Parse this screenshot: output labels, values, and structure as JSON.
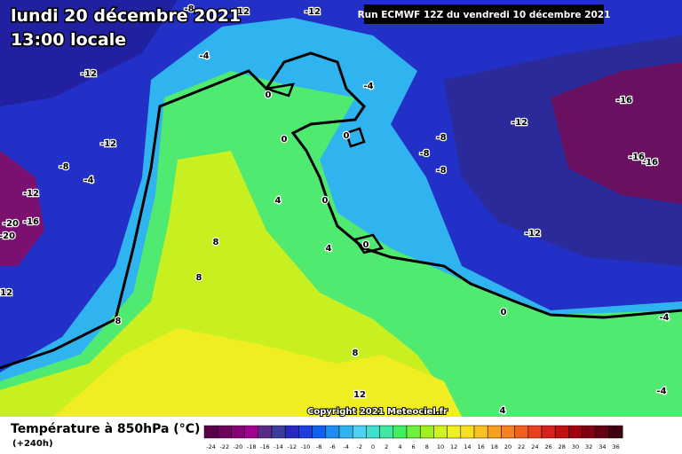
{
  "header": {
    "date": "lundi 20 décembre 2021",
    "time": "13:00 locale",
    "run": "Run ECMWF 12Z du vendredi 10 décembre 2021",
    "copyright": "Copyright 2021 Meteociel.fr"
  },
  "legend": {
    "title": "Température à 850hPa (°C)",
    "lead": "(+240h)",
    "ticks": [
      -24,
      -22,
      -20,
      -18,
      -16,
      -14,
      -12,
      -10,
      -8,
      -6,
      -4,
      -2,
      0,
      2,
      4,
      6,
      8,
      10,
      12,
      14,
      16,
      18,
      20,
      22,
      24,
      26,
      28,
      30,
      32,
      34,
      36
    ],
    "colors": [
      "#58004a",
      "#6e005e",
      "#880078",
      "#a0008e",
      "#5a2a8a",
      "#3c3c9a",
      "#2828c0",
      "#1e3ee0",
      "#1060f0",
      "#1e8cf0",
      "#30b4f0",
      "#50d0f0",
      "#40e0d0",
      "#40e8a0",
      "#40f060",
      "#70f040",
      "#a0f020",
      "#d0f020",
      "#f0f020",
      "#f8e020",
      "#f8c020",
      "#f8a020",
      "#f88020",
      "#f06020",
      "#e84020",
      "#d82020",
      "#c01010",
      "#a00010",
      "#800010",
      "#600010",
      "#400010"
    ]
  },
  "map": {
    "labels": [
      "-12",
      "-12",
      "-8",
      "-12",
      "-4",
      "0",
      "-4",
      "-12",
      "-16",
      "-12",
      "-8",
      "-4",
      "0",
      "0",
      "-8",
      "-8",
      "-8",
      "-16",
      "-16",
      "-12",
      "-20",
      "-16",
      "-20",
      "4",
      "0",
      "8",
      "4",
      "0",
      "-12",
      "8",
      "-12",
      "8",
      "0",
      "-4",
      "8",
      "12",
      "-4",
      "4"
    ]
  }
}
